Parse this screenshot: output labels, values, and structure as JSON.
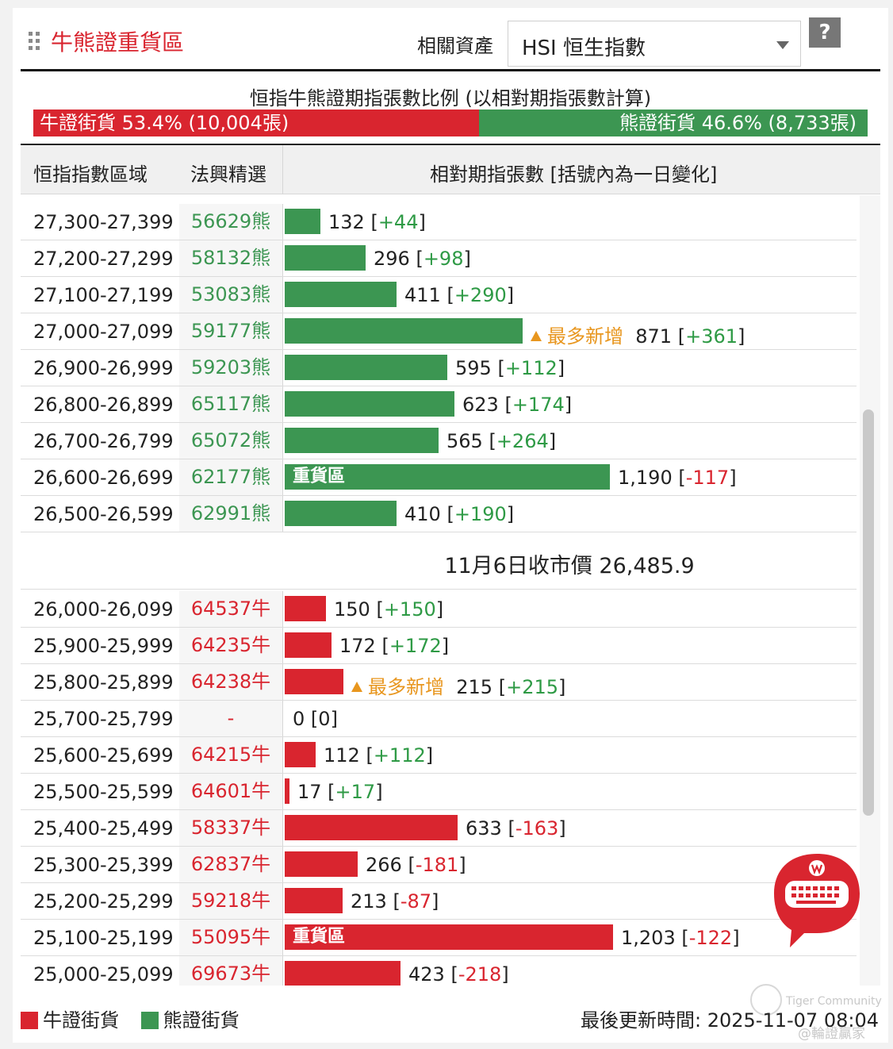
{
  "header": {
    "title": "牛熊證重貨區",
    "asset_label": "相關資產",
    "asset_value": "HSI 恒生指數",
    "help_label": "?"
  },
  "ratio": {
    "title": "恒指牛熊證期指張數比例 (以相對期指張數計算)",
    "bull_label": "牛證街貨 53.4% (10,004張)",
    "bull_fraction": 0.534,
    "bear_label": "熊證街貨 46.6% (8,733張)",
    "bear_fraction": 0.466
  },
  "columns": {
    "range": "恒指指數區域",
    "pick": "法興精選",
    "contracts": "相對期指張數 [括號內為一日變化]"
  },
  "max_contracts": 1203,
  "bear_rows": [
    {
      "range": "27,300-27,399",
      "pick": "56629熊",
      "value": 132,
      "value_text": "132",
      "change": "+44",
      "tag": "",
      "heavy": ""
    },
    {
      "range": "27,200-27,299",
      "pick": "58132熊",
      "value": 296,
      "value_text": "296",
      "change": "+98",
      "tag": "",
      "heavy": ""
    },
    {
      "range": "27,100-27,199",
      "pick": "53083熊",
      "value": 411,
      "value_text": "411",
      "change": "+290",
      "tag": "",
      "heavy": ""
    },
    {
      "range": "27,000-27,099",
      "pick": "59177熊",
      "value": 871,
      "value_text": "871",
      "change": "+361",
      "tag": "最多新增",
      "heavy": ""
    },
    {
      "range": "26,900-26,999",
      "pick": "59203熊",
      "value": 595,
      "value_text": "595",
      "change": "+112",
      "tag": "",
      "heavy": ""
    },
    {
      "range": "26,800-26,899",
      "pick": "65117熊",
      "value": 623,
      "value_text": "623",
      "change": "+174",
      "tag": "",
      "heavy": ""
    },
    {
      "range": "26,700-26,799",
      "pick": "65072熊",
      "value": 565,
      "value_text": "565",
      "change": "+264",
      "tag": "",
      "heavy": ""
    },
    {
      "range": "26,600-26,699",
      "pick": "62177熊",
      "value": 1190,
      "value_text": "1,190",
      "change": "-117",
      "tag": "",
      "heavy": "重貨區"
    },
    {
      "range": "26,500-26,599",
      "pick": "62991熊",
      "value": 410,
      "value_text": "410",
      "change": "+190",
      "tag": "",
      "heavy": ""
    }
  ],
  "close_price": "11月6日收市價 26,485.9",
  "bull_rows": [
    {
      "range": "26,000-26,099",
      "pick": "64537牛",
      "value": 150,
      "value_text": "150",
      "change": "+150",
      "tag": "",
      "heavy": ""
    },
    {
      "range": "25,900-25,999",
      "pick": "64235牛",
      "value": 172,
      "value_text": "172",
      "change": "+172",
      "tag": "",
      "heavy": ""
    },
    {
      "range": "25,800-25,899",
      "pick": "64238牛",
      "value": 215,
      "value_text": "215",
      "change": "+215",
      "tag": "最多新增",
      "heavy": ""
    },
    {
      "range": "25,700-25,799",
      "pick": "-",
      "value": 0,
      "value_text": "0",
      "change": "0",
      "tag": "",
      "heavy": ""
    },
    {
      "range": "25,600-25,699",
      "pick": "64215牛",
      "value": 112,
      "value_text": "112",
      "change": "+112",
      "tag": "",
      "heavy": ""
    },
    {
      "range": "25,500-25,599",
      "pick": "64601牛",
      "value": 17,
      "value_text": "17",
      "change": "+17",
      "tag": "",
      "heavy": ""
    },
    {
      "range": "25,400-25,499",
      "pick": "58337牛",
      "value": 633,
      "value_text": "633",
      "change": "-163",
      "tag": "",
      "heavy": ""
    },
    {
      "range": "25,300-25,399",
      "pick": "62837牛",
      "value": 266,
      "value_text": "266",
      "change": "-181",
      "tag": "",
      "heavy": ""
    },
    {
      "range": "25,200-25,299",
      "pick": "59218牛",
      "value": 213,
      "value_text": "213",
      "change": "-87",
      "tag": "",
      "heavy": ""
    },
    {
      "range": "25,100-25,199",
      "pick": "55095牛",
      "value": 1203,
      "value_text": "1,203",
      "change": "-122",
      "tag": "",
      "heavy": "重貨區"
    },
    {
      "range": "25,000-25,099",
      "pick": "69673牛",
      "value": 423,
      "value_text": "423",
      "change": "-218",
      "tag": "",
      "heavy": ""
    }
  ],
  "legend": {
    "bull": "牛證街貨",
    "bear": "熊證街貨"
  },
  "updated": "最後更新時間: 2025-11-07 08:04",
  "watermark": {
    "line1": "Tiger Community",
    "line2": "@輪證贏家"
  },
  "colors": {
    "bull": "#d9252f",
    "bear": "#3c9652",
    "tag": "#e8961e",
    "positive": "#2e9a45",
    "negative": "#d9252f"
  },
  "icons": {
    "grip": "drag-grip-icon",
    "dropdown": "chevron-down-icon",
    "help": "help-icon",
    "chat": "keyboard-chat-icon"
  }
}
